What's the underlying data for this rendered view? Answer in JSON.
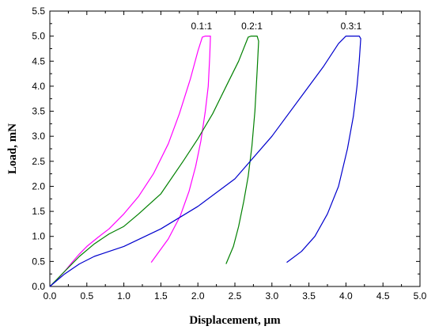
{
  "chart_data": {
    "type": "line",
    "xlabel": "Displacement, µm",
    "ylabel": "Load, mN",
    "xlim": [
      0,
      5
    ],
    "ylim": [
      0,
      5.5
    ],
    "xticks": [
      "0.0",
      "0.5",
      "1.0",
      "1.5",
      "2.0",
      "2.5",
      "3.0",
      "3.5",
      "4.0",
      "4.5",
      "5.0"
    ],
    "yticks": [
      "0.0",
      "0.5",
      "1.0",
      "1.5",
      "2.0",
      "2.5",
      "3.0",
      "3.5",
      "4.0",
      "4.5",
      "5.0",
      "5.5"
    ],
    "grid": false,
    "legend": "none",
    "series": [
      {
        "name": "0.1:1",
        "color": "#ff00ff",
        "x": [
          0.0,
          0.1,
          0.2,
          0.3,
          0.4,
          0.5,
          0.65,
          0.8,
          1.0,
          1.2,
          1.4,
          1.6,
          1.75,
          1.9,
          2.0,
          2.06,
          2.1,
          2.17,
          2.16,
          2.14,
          2.1,
          2.04,
          1.97,
          1.88,
          1.76,
          1.6,
          1.37
        ],
        "y": [
          0.0,
          0.14,
          0.3,
          0.48,
          0.65,
          0.8,
          0.98,
          1.15,
          1.45,
          1.8,
          2.25,
          2.85,
          3.45,
          4.15,
          4.7,
          4.98,
          5.0,
          5.0,
          4.6,
          4.0,
          3.5,
          2.9,
          2.4,
          1.9,
          1.4,
          0.95,
          0.48
        ]
      },
      {
        "name": "0.2:1",
        "color": "#008000",
        "x": [
          0.0,
          0.2,
          0.4,
          0.6,
          0.8,
          1.0,
          1.2,
          1.5,
          1.8,
          2.0,
          2.2,
          2.4,
          2.55,
          2.68,
          2.72,
          2.8,
          2.82,
          2.8,
          2.77,
          2.73,
          2.68,
          2.62,
          2.55,
          2.48,
          2.38
        ],
        "y": [
          0.0,
          0.3,
          0.6,
          0.85,
          1.05,
          1.2,
          1.45,
          1.85,
          2.5,
          2.95,
          3.45,
          4.05,
          4.5,
          4.98,
          5.0,
          5.0,
          4.9,
          4.3,
          3.5,
          2.8,
          2.2,
          1.7,
          1.2,
          0.8,
          0.45
        ]
      },
      {
        "name": "0.3:1",
        "color": "#0000cd",
        "x": [
          0.0,
          0.2,
          0.4,
          0.6,
          0.8,
          1.0,
          1.5,
          2.0,
          2.5,
          3.0,
          3.4,
          3.7,
          3.9,
          4.0,
          4.18,
          4.2,
          4.18,
          4.15,
          4.1,
          4.02,
          3.9,
          3.75,
          3.58,
          3.4,
          3.2
        ],
        "y": [
          0.0,
          0.25,
          0.45,
          0.6,
          0.7,
          0.8,
          1.15,
          1.6,
          2.15,
          3.0,
          3.8,
          4.4,
          4.85,
          5.0,
          5.0,
          4.95,
          4.5,
          4.0,
          3.4,
          2.75,
          2.0,
          1.45,
          1.0,
          0.7,
          0.48
        ]
      }
    ],
    "annotations": [
      {
        "text": "0.1:1",
        "x": 2.05,
        "y": 5.07
      },
      {
        "text": "0.2:1",
        "x": 2.73,
        "y": 5.07
      },
      {
        "text": "0.3:1",
        "x": 4.07,
        "y": 5.07
      }
    ]
  }
}
